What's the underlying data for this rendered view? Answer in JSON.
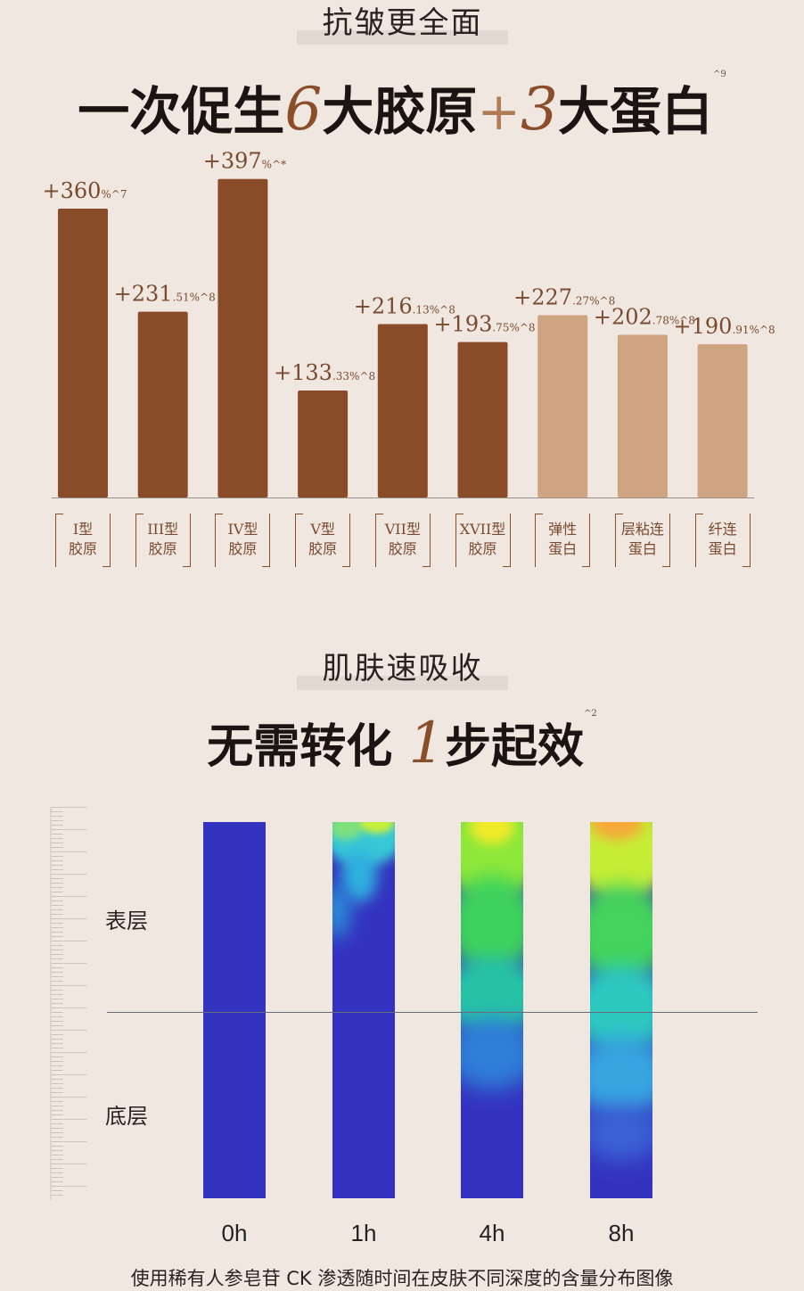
{
  "section1": {
    "title": "抗皱更全面",
    "headline": {
      "pre": "一次促生",
      "num1": "6",
      "mid": "大胶原",
      "plus": "+",
      "num2": "3",
      "post": "大蛋白",
      "note": "^9"
    }
  },
  "chart_data": {
    "type": "bar",
    "categories": [
      "I型胶原",
      "III型胶原",
      "IV型胶原",
      "V型胶原",
      "VII型胶原",
      "XVII型胶原",
      "弹性蛋白",
      "层粘连蛋白",
      "纤连蛋白"
    ],
    "category_lines": [
      [
        "I型",
        "胶原"
      ],
      [
        "III型",
        "胶原"
      ],
      [
        "IV型",
        "胶原"
      ],
      [
        "V型",
        "胶原"
      ],
      [
        "VII型",
        "胶原"
      ],
      [
        "XVII型",
        "胶原"
      ],
      [
        "弹性",
        "蛋白"
      ],
      [
        "层粘连",
        "蛋白"
      ],
      [
        "纤连",
        "蛋白"
      ]
    ],
    "values": [
      360,
      231.51,
      397,
      133.33,
      216.13,
      193.75,
      227.27,
      202.78,
      190.91
    ],
    "label_main": [
      "+360",
      "+231",
      "+397",
      "+133",
      "+216",
      "+193",
      "+227",
      "+202",
      "+190"
    ],
    "label_small": [
      "%^7",
      ".51%^8",
      "%^*",
      ".33%^8",
      ".13%^8",
      ".75%^8",
      ".27%^8",
      ".78%^8",
      ".91%^8"
    ],
    "ylim": [
      0,
      400
    ],
    "colors": [
      "#8a4b28",
      "#8a4b28",
      "#8a4b28",
      "#8a4b28",
      "#8a4b28",
      "#8a4b28",
      "#cfa481",
      "#cfa481",
      "#cfa481"
    ],
    "grid": false
  },
  "section2": {
    "title": "肌肤速吸收",
    "headline": {
      "pre": "无需转化 ",
      "num": "1",
      "post": "步起效",
      "note": "^2"
    },
    "layers": [
      "表层",
      "底层"
    ],
    "times": [
      "0h",
      "1h",
      "4h",
      "8h"
    ],
    "caption": "使用稀有人参皂苷 CK 渗透随时间在皮肤不同深度的含量分布图像"
  },
  "colors": {
    "dark_bar": "#8a4b28",
    "light_bar": "#cfa481",
    "background": "#f1e7e1",
    "heat_base": "#3433c0"
  }
}
